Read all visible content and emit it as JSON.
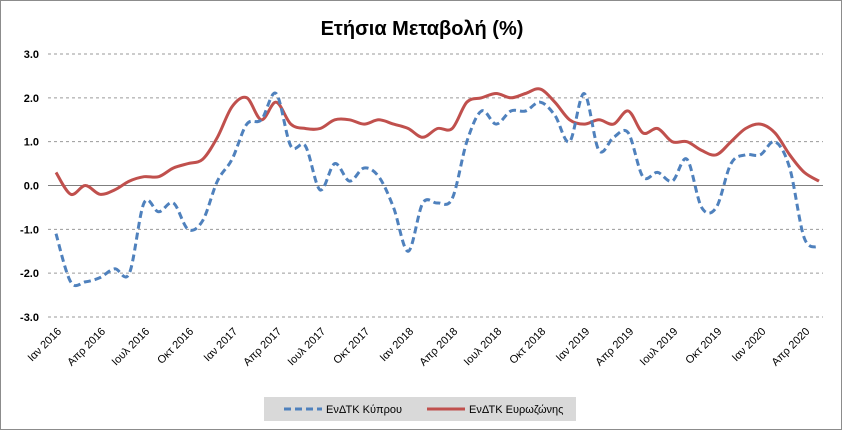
{
  "chart_data": {
    "type": "line",
    "title": "Ετήσια Μεταβολή (%)",
    "ylim": [
      -3.0,
      3.0
    ],
    "yticks": [
      "3.0",
      "2.0",
      "1.0",
      "0.0",
      "-1.0",
      "-2.0",
      "-3.0"
    ],
    "ytick_values": [
      3,
      2,
      1,
      0,
      -1,
      -2,
      -3
    ],
    "grid": true,
    "legend_position": "bottom",
    "x_tick_labels": [
      "Ιαν 2016",
      "Απρ 2016",
      "Ιουλ 2016",
      "Οκτ 2016",
      "Ιαν 2017",
      "Απρ 2017",
      "Ιουλ 2017",
      "Οκτ 2017",
      "Ιαν 2018",
      "Απρ 2018",
      "Ιουλ 2018",
      "Οκτ 2018",
      "Ιαν 2019",
      "Απρ 2019",
      "Ιουλ 2019",
      "Οκτ 2019",
      "Ιαν 2020",
      "Απρ 2020"
    ],
    "series": [
      {
        "name": "ΕνΔΤΚ Κύπρου",
        "color": "#4f81bd",
        "dash": "dashed",
        "values": [
          -1.1,
          -2.2,
          -2.2,
          -2.1,
          -1.9,
          -2.0,
          -0.4,
          -0.6,
          -0.4,
          -1.0,
          -0.8,
          0.1,
          0.6,
          1.4,
          1.5,
          2.1,
          0.9,
          0.9,
          -0.1,
          0.5,
          0.1,
          0.4,
          0.2,
          -0.5,
          -1.5,
          -0.4,
          -0.4,
          -0.3,
          1.0,
          1.7,
          1.4,
          1.7,
          1.7,
          1.9,
          1.6,
          1.0,
          2.1,
          0.8,
          1.1,
          1.2,
          0.2,
          0.3,
          0.1,
          0.6,
          -0.5,
          -0.5,
          0.5,
          0.7,
          0.7,
          1.0,
          0.4,
          -1.2,
          -1.4
        ]
      },
      {
        "name": "ΕνΔΤΚ Ευρωζώνης",
        "color": "#c0504d",
        "dash": "solid",
        "values": [
          0.3,
          -0.2,
          0.0,
          -0.2,
          -0.1,
          0.1,
          0.2,
          0.2,
          0.4,
          0.5,
          0.6,
          1.1,
          1.8,
          2.0,
          1.5,
          1.9,
          1.4,
          1.3,
          1.3,
          1.5,
          1.5,
          1.4,
          1.5,
          1.4,
          1.3,
          1.1,
          1.3,
          1.3,
          1.9,
          2.0,
          2.1,
          2.0,
          2.1,
          2.2,
          1.9,
          1.5,
          1.4,
          1.5,
          1.4,
          1.7,
          1.2,
          1.3,
          1.0,
          1.0,
          0.8,
          0.7,
          1.0,
          1.3,
          1.4,
          1.2,
          0.7,
          0.3,
          0.1
        ]
      }
    ]
  }
}
